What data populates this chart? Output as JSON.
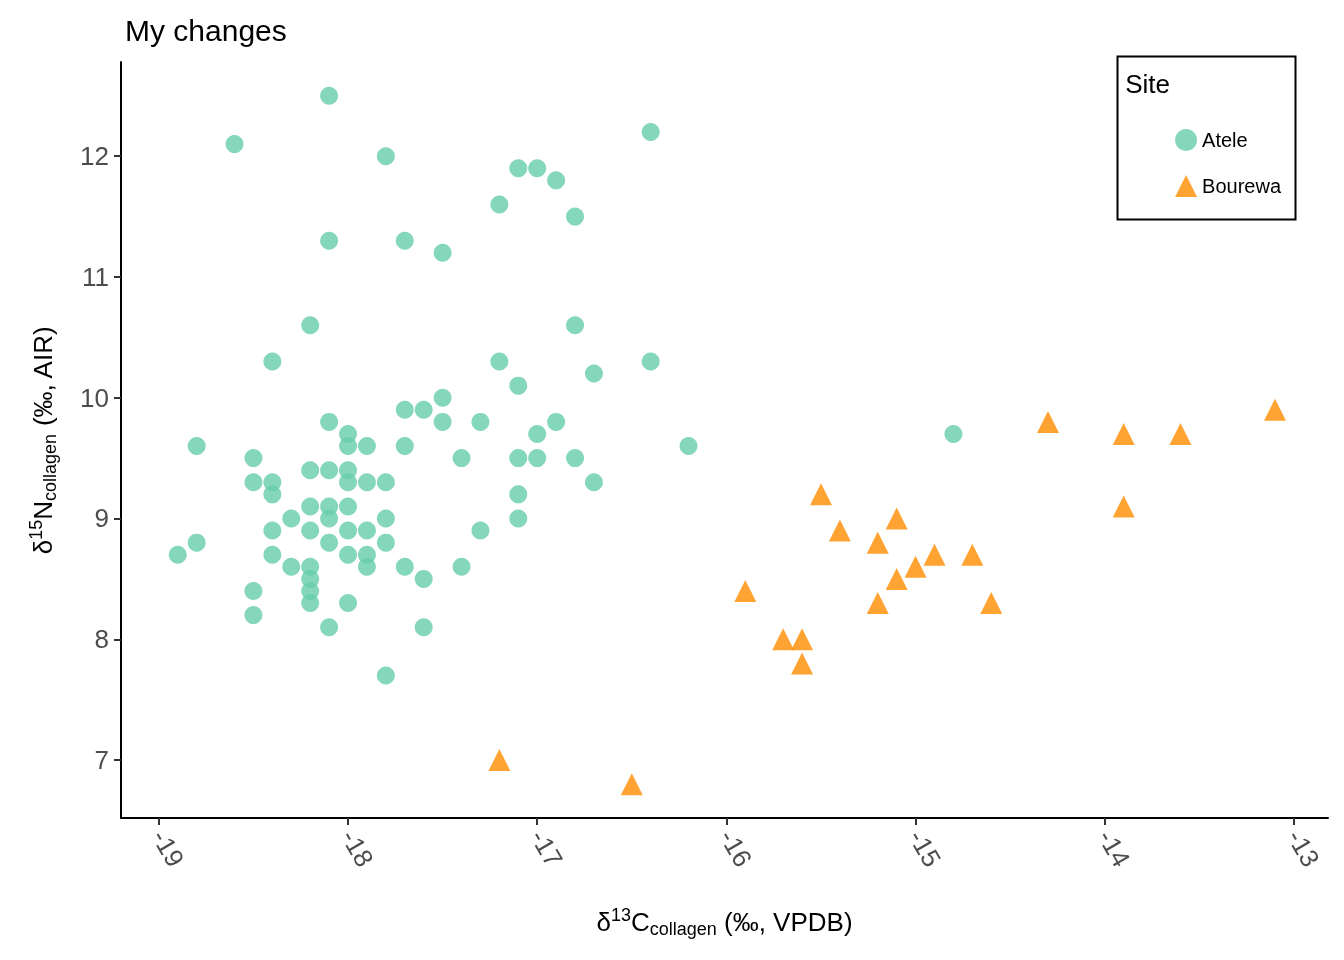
{
  "chart_data": {
    "type": "scatter",
    "title": "My changes",
    "xlabel": "δ$^{13}$C$_{collagen}$ (‰, VPDB)",
    "ylabel": "δ$^{15}$N$_{collagen}$ (‰, AIR)",
    "legend_title": "Site",
    "legend": "top right",
    "grid": false,
    "xlim": [
      -19.2,
      -12.82
    ],
    "xticks": [
      -19,
      -18,
      -17,
      -16,
      -15,
      -14,
      -13
    ],
    "ylim": [
      6.52,
      12.78
    ],
    "yticks": [
      7,
      8,
      9,
      10,
      11,
      12
    ],
    "series": [
      {
        "name": "Atele",
        "color": "#66cdaa",
        "marker": "circle",
        "x": [
          -18.6,
          -18.1,
          -17.8,
          -18.1,
          -17.7,
          -17.5,
          -17.2,
          -17.1,
          -17.0,
          -16.9,
          -16.8,
          -16.4,
          -18.2,
          -18.4,
          -16.8,
          -16.4,
          -17.2,
          -16.7,
          -17.1,
          -17.5,
          -17.7,
          -17.6,
          -17.5,
          -17.3,
          -16.9,
          -18.1,
          -18.0,
          -17.0,
          -14.8,
          -18.8,
          -18.0,
          -17.9,
          -17.7,
          -16.2,
          -18.5,
          -17.4,
          -17.1,
          -17.0,
          -16.8,
          -18.2,
          -18.1,
          -18.0,
          -18.5,
          -18.4,
          -18.0,
          -17.9,
          -17.8,
          -16.7,
          -18.4,
          -17.1,
          -18.2,
          -18.1,
          -18.0,
          -18.3,
          -18.1,
          -17.8,
          -17.1,
          -18.4,
          -18.2,
          -18.0,
          -17.9,
          -17.3,
          -18.1,
          -17.8,
          -18.8,
          -18.9,
          -18.4,
          -18.0,
          -17.9,
          -18.3,
          -18.2,
          -17.9,
          -17.7,
          -17.4,
          -18.2,
          -17.6,
          -18.5,
          -18.2,
          -18.2,
          -18.0,
          -18.5,
          -18.1,
          -17.6,
          -17.8
        ],
        "values": [
          12.1,
          12.5,
          12.0,
          11.3,
          11.3,
          11.2,
          11.6,
          11.9,
          11.9,
          11.8,
          11.5,
          12.2,
          10.6,
          10.3,
          10.6,
          10.3,
          10.3,
          10.2,
          10.1,
          10.0,
          9.9,
          9.9,
          9.8,
          9.8,
          9.8,
          9.8,
          9.7,
          9.7,
          9.7,
          9.6,
          9.6,
          9.6,
          9.6,
          9.6,
          9.5,
          9.5,
          9.5,
          9.5,
          9.5,
          9.4,
          9.4,
          9.4,
          9.3,
          9.3,
          9.3,
          9.3,
          9.3,
          9.3,
          9.2,
          9.2,
          9.1,
          9.1,
          9.1,
          9.0,
          9.0,
          9.0,
          9.0,
          8.9,
          8.9,
          8.9,
          8.9,
          8.9,
          8.8,
          8.8,
          8.8,
          8.7,
          8.7,
          8.7,
          8.7,
          8.6,
          8.6,
          8.6,
          8.6,
          8.6,
          8.5,
          8.5,
          8.4,
          8.4,
          8.3,
          8.3,
          8.2,
          8.1,
          8.1,
          7.7
        ]
      },
      {
        "name": "Bourewa",
        "color": "#ff8c00",
        "marker": "triangle",
        "x": [
          -17.2,
          -16.5,
          -15.9,
          -15.7,
          -15.6,
          -15.6,
          -15.5,
          -15.4,
          -15.2,
          -15.2,
          -15.1,
          -15.1,
          -15.0,
          -14.9,
          -14.7,
          -14.6,
          -14.3,
          -13.9,
          -13.9,
          -13.6,
          -13.1
        ],
        "values": [
          7.0,
          6.8,
          8.4,
          8.0,
          8.0,
          7.8,
          9.2,
          8.9,
          8.8,
          8.3,
          9.0,
          8.5,
          8.6,
          8.7,
          8.7,
          8.3,
          9.8,
          9.7,
          9.1,
          9.7,
          9.9
        ]
      }
    ]
  }
}
